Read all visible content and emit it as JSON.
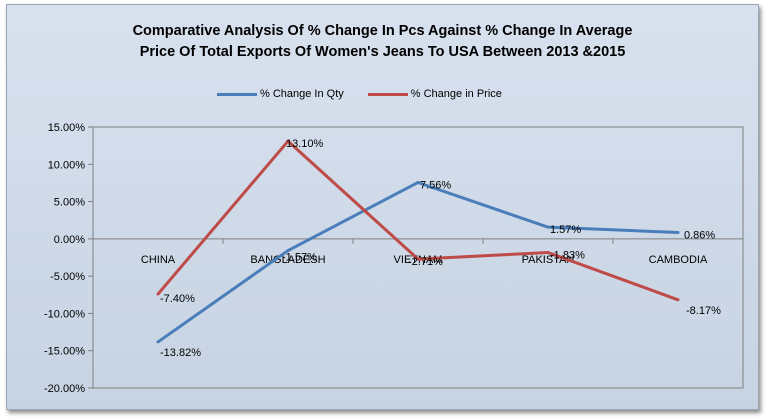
{
  "chart_data": {
    "type": "line",
    "title_lines": [
      "Comparative Analysis Of % Change In Pcs Against  % Change In Average",
      "Price Of Total Exports Of Women's Jeans To USA Between 2013 &2015"
    ],
    "categories": [
      "CHINA",
      "BANGLADESH",
      "VIETNAM",
      "PAKISTAN",
      "CAMBODIA"
    ],
    "series": [
      {
        "name": "% Change In Qty",
        "color": "#4a7ebb",
        "values": [
          -13.82,
          -1.57,
          7.56,
          1.57,
          0.86
        ],
        "labels": [
          "-13.82%",
          "-1.57%",
          "7.56%",
          "1.57%",
          "0.86%"
        ]
      },
      {
        "name": "% Change in Price",
        "color": "#be4b48",
        "values": [
          -7.4,
          13.1,
          -2.71,
          -1.83,
          -8.17
        ],
        "labels": [
          "-7.40%",
          "13.10%",
          "-2.71%",
          "-1.83%",
          "-8.17%"
        ]
      }
    ],
    "ylim": [
      -20,
      15
    ],
    "yticks": [
      {
        "value": 15,
        "label": "15.00%"
      },
      {
        "value": 10,
        "label": "10.00%"
      },
      {
        "value": 5,
        "label": "5.00%"
      },
      {
        "value": 0,
        "label": "0.00%"
      },
      {
        "value": -5,
        "label": "-5.00%"
      },
      {
        "value": -10,
        "label": "-10.00%"
      },
      {
        "value": -15,
        "label": "-15.00%"
      },
      {
        "value": -20,
        "label": "-20.00%"
      }
    ],
    "xlabel": "",
    "ylabel": "",
    "legend_position": "top",
    "grid": false
  }
}
